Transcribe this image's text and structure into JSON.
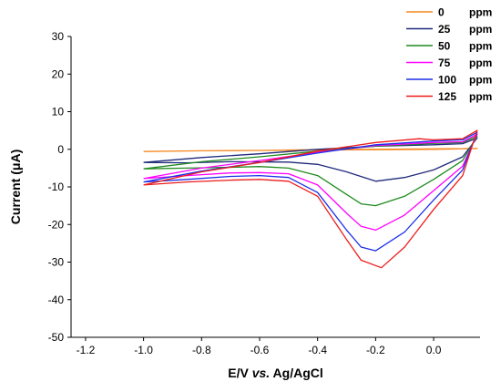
{
  "chart_data": {
    "type": "line",
    "xlabel_parts": [
      "E/V ",
      "vs.",
      " Ag/AgCl"
    ],
    "ylabel": "Current (μA)",
    "xlim": [
      -1.25,
      0.16
    ],
    "ylim": [
      -50,
      30
    ],
    "xticks": [
      "-1.2",
      "-1.0",
      "-0.8",
      "-0.6",
      "-0.4",
      "-0.2",
      "0.0"
    ],
    "yticks": [
      "30",
      "20",
      "10",
      "0",
      "-10",
      "-20",
      "-30",
      "-40",
      "-50"
    ],
    "legend_position": "top-right",
    "series": [
      {
        "name": "0",
        "unit": "ppm",
        "color": "#f5871f",
        "forward": [
          [
            -1.0,
            -0.6
          ],
          [
            -0.8,
            -0.4
          ],
          [
            -0.6,
            -0.3
          ],
          [
            -0.4,
            -0.2
          ],
          [
            -0.2,
            -0.1
          ],
          [
            0.0,
            0.0
          ],
          [
            0.15,
            0.2
          ]
        ],
        "reverse": [
          [
            0.15,
            0.2
          ],
          [
            0.0,
            0.1
          ],
          [
            -0.2,
            0.0
          ],
          [
            -0.4,
            -0.1
          ],
          [
            -0.6,
            -0.3
          ],
          [
            -0.8,
            -0.4
          ],
          [
            -1.0,
            -0.6
          ]
        ]
      },
      {
        "name": "25",
        "unit": "ppm",
        "color": "#1f2a7a",
        "forward": [
          [
            -1.0,
            -3.5
          ],
          [
            -0.8,
            -2.2
          ],
          [
            -0.6,
            -1.2
          ],
          [
            -0.4,
            0.0
          ],
          [
            -0.2,
            0.8
          ],
          [
            0.0,
            1.2
          ],
          [
            0.1,
            1.5
          ],
          [
            0.15,
            3.0
          ]
        ],
        "reverse": [
          [
            0.15,
            1.0
          ],
          [
            0.1,
            -2.0
          ],
          [
            0.0,
            -5.5
          ],
          [
            -0.1,
            -7.5
          ],
          [
            -0.2,
            -8.5
          ],
          [
            -0.3,
            -6.0
          ],
          [
            -0.4,
            -4.0
          ],
          [
            -0.5,
            -3.4
          ],
          [
            -0.7,
            -3.3
          ],
          [
            -0.85,
            -3.6
          ],
          [
            -1.0,
            -3.5
          ]
        ]
      },
      {
        "name": "50",
        "unit": "ppm",
        "color": "#1f8a1f",
        "forward": [
          [
            -1.0,
            -5.2
          ],
          [
            -0.8,
            -3.3
          ],
          [
            -0.6,
            -2.0
          ],
          [
            -0.4,
            -0.5
          ],
          [
            -0.2,
            0.8
          ],
          [
            0.0,
            1.6
          ],
          [
            0.1,
            1.8
          ],
          [
            0.15,
            3.5
          ]
        ],
        "reverse": [
          [
            0.15,
            1.0
          ],
          [
            0.1,
            -3.0
          ],
          [
            0.0,
            -8.0
          ],
          [
            -0.1,
            -12.5
          ],
          [
            -0.2,
            -15.0
          ],
          [
            -0.25,
            -14.5
          ],
          [
            -0.3,
            -12.0
          ],
          [
            -0.4,
            -7.0
          ],
          [
            -0.5,
            -5.0
          ],
          [
            -0.6,
            -4.6
          ],
          [
            -0.7,
            -4.8
          ],
          [
            -0.85,
            -5.0
          ],
          [
            -1.0,
            -5.2
          ]
        ]
      },
      {
        "name": "75",
        "unit": "ppm",
        "color": "#ff00ff",
        "forward": [
          [
            -1.0,
            -7.8
          ],
          [
            -0.8,
            -5.0
          ],
          [
            -0.6,
            -3.0
          ],
          [
            -0.4,
            -0.8
          ],
          [
            -0.2,
            1.0
          ],
          [
            0.0,
            1.8
          ],
          [
            0.1,
            2.0
          ],
          [
            0.15,
            4.0
          ]
        ],
        "reverse": [
          [
            0.15,
            1.0
          ],
          [
            0.1,
            -4.5
          ],
          [
            0.0,
            -11.0
          ],
          [
            -0.1,
            -17.5
          ],
          [
            -0.2,
            -21.5
          ],
          [
            -0.25,
            -20.5
          ],
          [
            -0.3,
            -17.0
          ],
          [
            -0.4,
            -9.5
          ],
          [
            -0.5,
            -6.5
          ],
          [
            -0.6,
            -6.2
          ],
          [
            -0.7,
            -6.3
          ],
          [
            -0.85,
            -7.0
          ],
          [
            -1.0,
            -7.8
          ]
        ]
      },
      {
        "name": "100",
        "unit": "ppm",
        "color": "#1c2fe8",
        "forward": [
          [
            -1.0,
            -8.7
          ],
          [
            -0.8,
            -5.8
          ],
          [
            -0.6,
            -3.5
          ],
          [
            -0.4,
            -1.0
          ],
          [
            -0.2,
            1.2
          ],
          [
            0.0,
            2.2
          ],
          [
            0.1,
            2.5
          ],
          [
            0.15,
            4.5
          ]
        ],
        "reverse": [
          [
            0.15,
            1.0
          ],
          [
            0.1,
            -5.5
          ],
          [
            0.0,
            -13.5
          ],
          [
            -0.1,
            -22.0
          ],
          [
            -0.2,
            -27.0
          ],
          [
            -0.25,
            -26.0
          ],
          [
            -0.3,
            -21.5
          ],
          [
            -0.4,
            -11.5
          ],
          [
            -0.5,
            -7.5
          ],
          [
            -0.6,
            -7.0
          ],
          [
            -0.7,
            -7.2
          ],
          [
            -0.85,
            -8.0
          ],
          [
            -1.0,
            -8.7
          ]
        ]
      },
      {
        "name": "125",
        "unit": "ppm",
        "color": "#ee1c1c",
        "forward": [
          [
            -1.0,
            -9.5
          ],
          [
            -0.8,
            -6.0
          ],
          [
            -0.6,
            -3.5
          ],
          [
            -0.4,
            -0.5
          ],
          [
            -0.2,
            1.8
          ],
          [
            -0.05,
            2.8
          ],
          [
            0.0,
            2.5
          ],
          [
            0.1,
            2.8
          ],
          [
            0.15,
            5.0
          ]
        ],
        "reverse": [
          [
            0.15,
            0.5
          ],
          [
            0.1,
            -7.0
          ],
          [
            0.0,
            -16.0
          ],
          [
            -0.1,
            -26.0
          ],
          [
            -0.18,
            -31.5
          ],
          [
            -0.25,
            -29.5
          ],
          [
            -0.3,
            -24.0
          ],
          [
            -0.4,
            -12.5
          ],
          [
            -0.5,
            -8.5
          ],
          [
            -0.6,
            -8.0
          ],
          [
            -0.7,
            -8.2
          ],
          [
            -0.85,
            -8.7
          ],
          [
            -1.0,
            -9.5
          ]
        ]
      }
    ]
  }
}
